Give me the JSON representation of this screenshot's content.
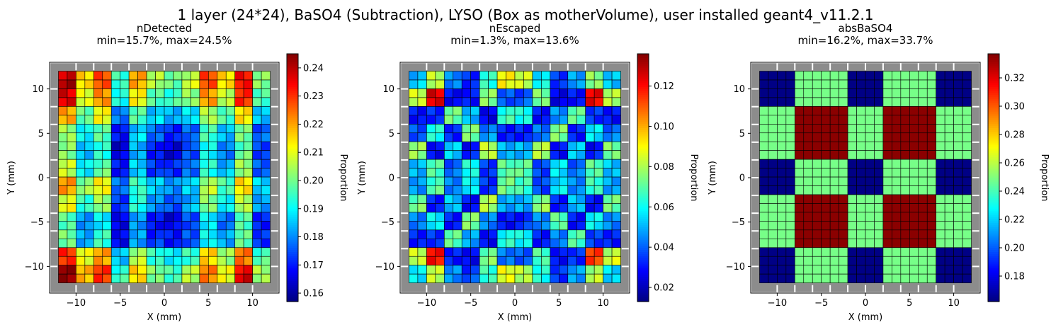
{
  "figure": {
    "suptitle": "1 layer (24*24), BaSO4 (Subtraction), LYSO (Box as motherVolume), user installed geant4_v11.2.1"
  },
  "chart_data": [
    {
      "type": "heatmap",
      "title": "nDetected",
      "subtitle": "min=15.7%, max=24.5%",
      "xlabel": "X (mm)",
      "ylabel": "Y (mm)",
      "xlim": [
        -13,
        13
      ],
      "ylim": [
        -13,
        13
      ],
      "xticks": [
        -10,
        -5,
        0,
        5,
        10
      ],
      "yticks": [
        -10,
        -5,
        0,
        5,
        10
      ],
      "grid": {
        "nx": 24,
        "ny": 24,
        "x_range": [
          -12,
          12
        ],
        "y_range": [
          -12,
          12
        ]
      },
      "colormap": "jet",
      "clim": [
        0.157,
        0.245
      ],
      "colorbar_label": "Proportion",
      "colorbar_ticks": [
        "0.16",
        "0.17",
        "0.18",
        "0.19",
        "0.20",
        "0.21",
        "0.22",
        "0.23",
        "0.24"
      ],
      "colorbar_tick_values": [
        0.16,
        0.17,
        0.18,
        0.19,
        0.2,
        0.21,
        0.22,
        0.23,
        0.24
      ],
      "background": "#8c8c8c",
      "gap_lines": "#ffffff",
      "tile_values": [
        [
          0.24,
          0.214,
          0.228,
          0.196,
          0.218,
          0.205,
          0.2,
          0.207,
          0.227,
          0.215,
          0.235,
          0.2
        ],
        [
          0.236,
          0.21,
          0.223,
          0.19,
          0.212,
          0.198,
          0.195,
          0.201,
          0.221,
          0.208,
          0.229,
          0.196
        ],
        [
          0.22,
          0.2,
          0.21,
          0.178,
          0.198,
          0.186,
          0.182,
          0.188,
          0.206,
          0.195,
          0.214,
          0.186
        ],
        [
          0.205,
          0.188,
          0.197,
          0.17,
          0.186,
          0.176,
          0.171,
          0.178,
          0.194,
          0.184,
          0.201,
          0.176
        ],
        [
          0.2,
          0.184,
          0.194,
          0.165,
          0.182,
          0.17,
          0.166,
          0.173,
          0.19,
          0.18,
          0.198,
          0.172
        ],
        [
          0.207,
          0.19,
          0.198,
          0.168,
          0.186,
          0.174,
          0.17,
          0.177,
          0.194,
          0.184,
          0.202,
          0.176
        ],
        [
          0.222,
          0.202,
          0.211,
          0.178,
          0.196,
          0.184,
          0.18,
          0.187,
          0.205,
          0.195,
          0.215,
          0.188
        ],
        [
          0.21,
          0.193,
          0.203,
          0.174,
          0.191,
          0.18,
          0.176,
          0.183,
          0.2,
          0.19,
          0.207,
          0.18
        ],
        [
          0.196,
          0.181,
          0.19,
          0.165,
          0.181,
          0.17,
          0.166,
          0.173,
          0.189,
          0.179,
          0.195,
          0.17
        ],
        [
          0.2,
          0.184,
          0.193,
          0.167,
          0.183,
          0.172,
          0.168,
          0.175,
          0.191,
          0.181,
          0.198,
          0.173
        ],
        [
          0.232,
          0.209,
          0.22,
          0.186,
          0.205,
          0.193,
          0.189,
          0.196,
          0.214,
          0.203,
          0.225,
          0.196
        ],
        [
          0.243,
          0.218,
          0.231,
          0.194,
          0.214,
          0.201,
          0.197,
          0.204,
          0.223,
          0.212,
          0.236,
          0.203
        ]
      ]
    },
    {
      "type": "heatmap",
      "title": "nEscaped",
      "subtitle": "min=1.3%, max=13.6%",
      "xlabel": "X (mm)",
      "ylabel": "Y (mm)",
      "xlim": [
        -13,
        13
      ],
      "ylim": [
        -13,
        13
      ],
      "xticks": [
        -10,
        -5,
        0,
        5,
        10
      ],
      "yticks": [
        -10,
        -5,
        0,
        5,
        10
      ],
      "grid": {
        "nx": 24,
        "ny": 24,
        "x_range": [
          -12,
          12
        ],
        "y_range": [
          -12,
          12
        ]
      },
      "colormap": "jet",
      "clim": [
        0.013,
        0.136
      ],
      "colorbar_label": "Proportion",
      "colorbar_ticks": [
        "0.02",
        "0.04",
        "0.06",
        "0.08",
        "0.10",
        "0.12"
      ],
      "colorbar_tick_values": [
        0.02,
        0.04,
        0.06,
        0.08,
        0.1,
        0.12
      ],
      "background": "#8c8c8c",
      "gap_lines": "#ffffff",
      "tile_values": [
        [
          0.052,
          0.08,
          0.045,
          0.035,
          0.062,
          0.09,
          0.085,
          0.058,
          0.033,
          0.048,
          0.078,
          0.05
        ],
        [
          0.082,
          0.125,
          0.03,
          0.028,
          0.075,
          0.04,
          0.038,
          0.072,
          0.026,
          0.032,
          0.12,
          0.08
        ],
        [
          0.03,
          0.035,
          0.07,
          0.05,
          0.028,
          0.065,
          0.06,
          0.03,
          0.048,
          0.068,
          0.034,
          0.031
        ],
        [
          0.04,
          0.06,
          0.032,
          0.075,
          0.045,
          0.03,
          0.032,
          0.044,
          0.072,
          0.031,
          0.058,
          0.042
        ],
        [
          0.075,
          0.028,
          0.055,
          0.03,
          0.08,
          0.05,
          0.052,
          0.078,
          0.029,
          0.054,
          0.03,
          0.072
        ],
        [
          0.05,
          0.07,
          0.04,
          0.06,
          0.035,
          0.072,
          0.068,
          0.036,
          0.058,
          0.041,
          0.068,
          0.052
        ],
        [
          0.048,
          0.068,
          0.042,
          0.058,
          0.036,
          0.07,
          0.066,
          0.038,
          0.056,
          0.043,
          0.066,
          0.05
        ],
        [
          0.072,
          0.03,
          0.052,
          0.031,
          0.078,
          0.048,
          0.05,
          0.075,
          0.03,
          0.051,
          0.031,
          0.07
        ],
        [
          0.042,
          0.058,
          0.033,
          0.072,
          0.044,
          0.031,
          0.033,
          0.043,
          0.07,
          0.032,
          0.056,
          0.044
        ],
        [
          0.032,
          0.036,
          0.068,
          0.048,
          0.03,
          0.062,
          0.058,
          0.031,
          0.046,
          0.066,
          0.035,
          0.033
        ],
        [
          0.085,
          0.118,
          0.031,
          0.029,
          0.073,
          0.041,
          0.039,
          0.07,
          0.027,
          0.033,
          0.115,
          0.083
        ],
        [
          0.055,
          0.082,
          0.047,
          0.036,
          0.064,
          0.088,
          0.083,
          0.06,
          0.034,
          0.049,
          0.08,
          0.053
        ]
      ]
    },
    {
      "type": "heatmap",
      "title": "absBaSO4",
      "subtitle": "min=16.2%, max=33.7%",
      "xlabel": "X (mm)",
      "ylabel": "Y (mm)",
      "xlim": [
        -13,
        13
      ],
      "ylim": [
        -13,
        13
      ],
      "xticks": [
        -10,
        -5,
        0,
        5,
        10
      ],
      "yticks": [
        -10,
        -5,
        0,
        5,
        10
      ],
      "grid": {
        "nx": 24,
        "ny": 24,
        "x_range": [
          -12,
          12
        ],
        "y_range": [
          -12,
          12
        ]
      },
      "colormap": "jet",
      "clim": [
        0.162,
        0.337
      ],
      "colorbar_label": "Proportion",
      "colorbar_ticks": [
        "0.18",
        "0.20",
        "0.22",
        "0.24",
        "0.26",
        "0.28",
        "0.30",
        "0.32"
      ],
      "colorbar_tick_values": [
        0.18,
        0.2,
        0.22,
        0.24,
        0.26,
        0.28,
        0.3,
        0.32
      ],
      "background": "#8c8c8c",
      "gap_lines": "#ffffff",
      "block_x_edges_mm": [
        -12,
        -8,
        -2,
        2,
        8,
        12
      ],
      "block_y_edges_mm": [
        -12,
        -8,
        -2,
        2,
        8,
        12
      ],
      "block_values": [
        [
          0.163,
          0.248,
          0.163,
          0.248,
          0.163
        ],
        [
          0.248,
          0.335,
          0.248,
          0.335,
          0.248
        ],
        [
          0.163,
          0.248,
          0.163,
          0.248,
          0.163
        ],
        [
          0.248,
          0.335,
          0.248,
          0.335,
          0.248
        ],
        [
          0.163,
          0.248,
          0.163,
          0.248,
          0.163
        ]
      ]
    }
  ]
}
